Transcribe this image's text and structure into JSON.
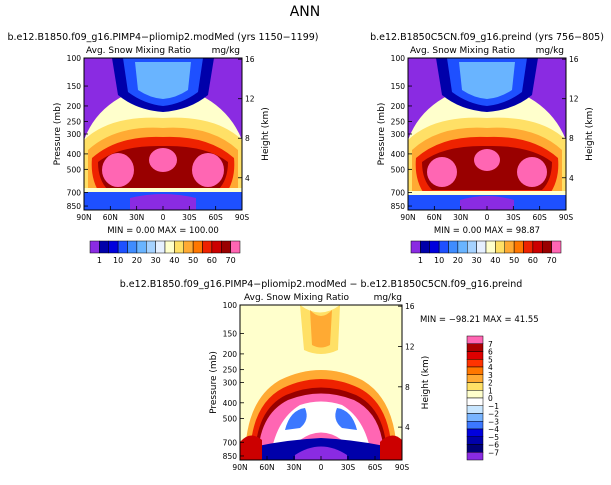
{
  "page": {
    "title": "ANN"
  },
  "panels": [
    {
      "case_title": "b.e12.B1850.f09_g16.PIMP4−pliomip2.modMed (yrs 1150−1199)",
      "variable": "Avg. Snow Mixing Ratio",
      "units": "mg/kg",
      "stats": "MIN =    0.00  MAX = 100.00"
    },
    {
      "case_title": "b.e12.B1850C5CN.f09_g16.preind (yrs 756−805)",
      "variable": "Avg. Snow Mixing Ratio",
      "units": "mg/kg",
      "stats": "MIN =    0.00  MAX =  98.87"
    },
    {
      "case_title": "b.e12.B1850.f09_g16.PIMP4−pliomip2.modMed − b.e12.B1850C5CN.f09_g16.preind",
      "variable": "Avg. Snow Mixing Ratio",
      "units": "mg/kg",
      "stats": "MIN =  −98.21   MAX =   41.55"
    }
  ],
  "axes": {
    "ylabel_left": "Pressure (mb)",
    "ylabel_right": "Height (km)",
    "pressure_ticks": [
      "100",
      "150",
      "200",
      "250",
      "300",
      "400",
      "500",
      "700",
      "850"
    ],
    "height_ticks": [
      "16",
      "12",
      "8",
      "4"
    ],
    "lat_ticks": [
      "90N",
      "60N",
      "30N",
      "0",
      "30S",
      "60S",
      "90S"
    ]
  },
  "colorbar_abs": {
    "labels": [
      "1",
      "10",
      "20",
      "30",
      "40",
      "50",
      "60",
      "70"
    ],
    "colors": [
      "#8a2be2",
      "#0000aa",
      "#0000dd",
      "#1e50ff",
      "#3f8cff",
      "#69b4ff",
      "#a5d2ff",
      "#e6f0ff",
      "#ffffcc",
      "#ffe066",
      "#ffaa33",
      "#ff7700",
      "#ee2200",
      "#cc0000",
      "#990000",
      "#ff66b3"
    ]
  },
  "colorbar_diff": {
    "labels": [
      "7",
      "6",
      "5",
      "4",
      "3",
      "2",
      "1",
      "0",
      "−1",
      "−2",
      "−3",
      "−4",
      "−5",
      "−6",
      "−7"
    ],
    "colors": [
      "#ff66b3",
      "#aa0000",
      "#dd0000",
      "#ff3300",
      "#ff7700",
      "#ffaa33",
      "#ffe066",
      "#ffffcc",
      "#ffffff",
      "#c8e6ff",
      "#78b4ff",
      "#3c78ff",
      "#0000dd",
      "#0000aa",
      "#000077",
      "#8a2be2"
    ]
  },
  "chart_data": [
    {
      "type": "heatmap",
      "title": "b.e12.B1850.f09_g16.PIMP4−pliomip2.modMed (yrs 1150−1199)",
      "xlabel": "",
      "ylabel": "Pressure (mb)",
      "y2label": "Height (km)",
      "x_ticks": [
        "90N",
        "60N",
        "30N",
        "0",
        "30S",
        "60S",
        "90S"
      ],
      "y_ticks": [
        100,
        150,
        200,
        250,
        300,
        400,
        500,
        700,
        850
      ],
      "y_scale": "log",
      "y_reversed": true,
      "min": 0.0,
      "max": 100.0,
      "contour_levels": [
        1,
        10,
        20,
        30,
        40,
        50,
        60,
        70
      ]
    },
    {
      "type": "heatmap",
      "title": "b.e12.B1850C5CN.f09_g16.preind (yrs 756−805)",
      "xlabel": "",
      "ylabel": "Pressure (mb)",
      "y2label": "Height (km)",
      "x_ticks": [
        "90N",
        "60N",
        "30N",
        "0",
        "30S",
        "60S",
        "90S"
      ],
      "y_ticks": [
        100,
        150,
        200,
        250,
        300,
        400,
        500,
        700,
        850
      ],
      "y_scale": "log",
      "y_reversed": true,
      "min": 0.0,
      "max": 98.87,
      "contour_levels": [
        1,
        10,
        20,
        30,
        40,
        50,
        60,
        70
      ]
    },
    {
      "type": "heatmap",
      "title": "b.e12.B1850.f09_g16.PIMP4−pliomip2.modMed − b.e12.B1850C5CN.f09_g16.preind",
      "xlabel": "",
      "ylabel": "Pressure (mb)",
      "y2label": "Height (km)",
      "x_ticks": [
        "90N",
        "60N",
        "30N",
        "0",
        "30S",
        "60S",
        "90S"
      ],
      "y_ticks": [
        100,
        150,
        200,
        250,
        300,
        400,
        500,
        700,
        850
      ],
      "y_scale": "log",
      "y_reversed": true,
      "min": -98.21,
      "max": 41.55,
      "contour_levels": [
        -7,
        -6,
        -5,
        -4,
        -3,
        -2,
        -1,
        0,
        1,
        2,
        3,
        4,
        5,
        6,
        7
      ]
    }
  ]
}
